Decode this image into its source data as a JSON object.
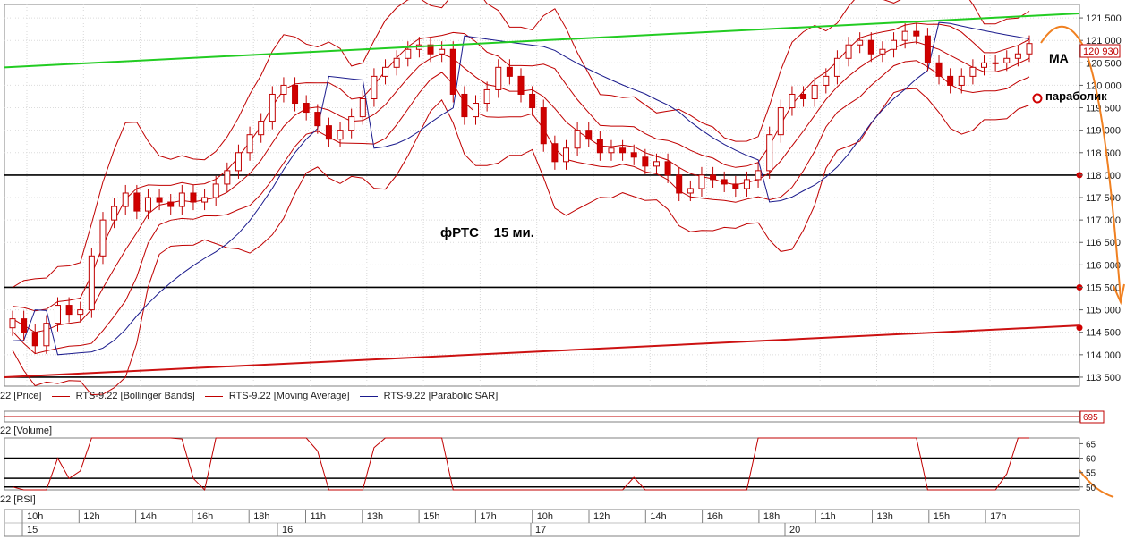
{
  "chart_data": {
    "type": "candlestick",
    "title": "фРТС    15 ми.",
    "price_pane": {
      "label": "22 [Price]",
      "yticks": [
        "121 500",
        "121 000",
        "120 500",
        "120 000",
        "119 500",
        "119 000",
        "118 500",
        "118 000",
        "117 500",
        "117 000",
        "116 500",
        "116 000",
        "115 500",
        "115 000",
        "114 500",
        "114 000",
        "113 500"
      ],
      "ytick_values": [
        121500,
        121000,
        120500,
        120000,
        119500,
        119000,
        118500,
        118000,
        117500,
        117000,
        116500,
        116000,
        115500,
        115000,
        114500,
        114000,
        113500
      ],
      "ylim": [
        113300,
        121800
      ],
      "last_price": "120 930",
      "horizontal_levels": [
        118000,
        115500,
        113500
      ],
      "level_marker": 114600,
      "green_trendline": {
        "from": 120400,
        "to": 121600
      },
      "red_trendline": {
        "from": 113500,
        "to": 114650
      },
      "series_legend": [
        {
          "name": "RTS-9.22 [Bollinger Bands]",
          "color": "#c00000"
        },
        {
          "name": "RTS-9.22 [Moving Average]",
          "color": "#c00000"
        },
        {
          "name": "RTS-9.22 [Parabolic SAR]",
          "color": "#1a1a8c"
        }
      ],
      "close_series": [
        114800,
        114500,
        114200,
        114700,
        115100,
        114900,
        115000,
        116200,
        117000,
        117300,
        117600,
        117200,
        117500,
        117400,
        117300,
        117600,
        117400,
        117500,
        117800,
        118100,
        118500,
        118900,
        119200,
        119800,
        120000,
        119600,
        119400,
        119100,
        118800,
        119000,
        119300,
        119700,
        120200,
        120400,
        120600,
        120800,
        120900,
        120700,
        120800,
        119800,
        119300,
        119600,
        119900,
        120400,
        120200,
        119800,
        119500,
        118700,
        118300,
        118600,
        119000,
        118800,
        118500,
        118600,
        118500,
        118400,
        118200,
        118300,
        118000,
        117600,
        117700,
        118000,
        117900,
        117800,
        117700,
        117900,
        118100,
        118900,
        119500,
        119800,
        119700,
        120000,
        120200,
        120600,
        120900,
        121000,
        120700,
        120800,
        121000,
        121200,
        121100,
        120500,
        120200,
        120000,
        120200,
        120400,
        120500,
        120500,
        120600,
        120700,
        120930
      ]
    },
    "volume_pane": {
      "label": "22 [Volume]",
      "value": "695"
    },
    "rsi_pane": {
      "label": "22 [RSI]",
      "yticks": [
        "65",
        "60",
        "55",
        "50"
      ],
      "ytick_values": [
        65,
        60,
        55,
        50
      ],
      "ylim": [
        49,
        67
      ]
    },
    "time_axis": {
      "hours": [
        "10h",
        "12h",
        "14h",
        "16h",
        "18h",
        "11h",
        "13h",
        "15h",
        "17h",
        "10h",
        "12h",
        "14h",
        "16h",
        "18h",
        "11h",
        "13h",
        "15h",
        "17h"
      ],
      "days": [
        "15",
        "16",
        "17",
        "20"
      ]
    },
    "annotations": {
      "ma": "MA",
      "parabolic": "параболик"
    }
  }
}
